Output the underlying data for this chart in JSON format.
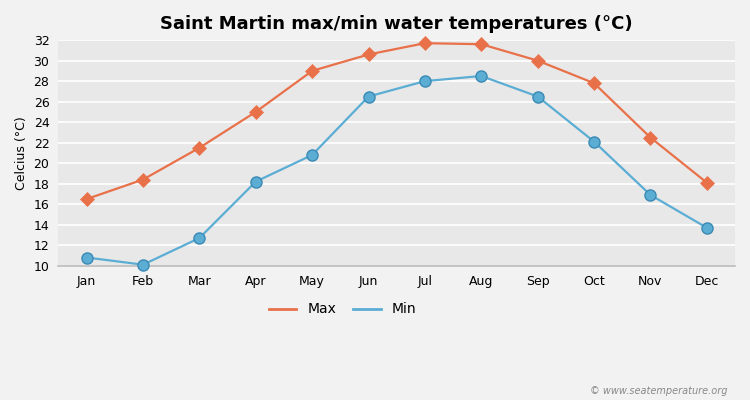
{
  "title": "Saint Martin max/min water temperatures (°C)",
  "ylabel": "Celcius (°C)",
  "months": [
    "Jan",
    "Feb",
    "Mar",
    "Apr",
    "May",
    "Jun",
    "Jul",
    "Aug",
    "Sep",
    "Oct",
    "Nov",
    "Dec"
  ],
  "max_temps": [
    16.5,
    18.4,
    21.5,
    25.0,
    29.0,
    30.6,
    31.7,
    31.6,
    30.0,
    27.8,
    22.5,
    18.1
  ],
  "min_temps": [
    10.8,
    10.1,
    12.7,
    18.2,
    20.8,
    26.5,
    28.0,
    28.5,
    26.5,
    22.1,
    16.9,
    13.7
  ],
  "max_color": "#e8714a",
  "min_color": "#5badd4",
  "bg_color": "#f2f2f2",
  "plot_bg_color": "#e8e8e8",
  "grid_color": "#ffffff",
  "ylim": [
    10,
    32
  ],
  "yticks": [
    10,
    12,
    14,
    16,
    18,
    20,
    22,
    24,
    26,
    28,
    30,
    32
  ],
  "watermark": "© www.seatemperature.org",
  "legend_labels": [
    "Max",
    "Min"
  ],
  "title_fontsize": 13,
  "label_fontsize": 9,
  "tick_fontsize": 9,
  "marker_size_max": 7,
  "marker_size_min": 8,
  "line_width": 1.6
}
